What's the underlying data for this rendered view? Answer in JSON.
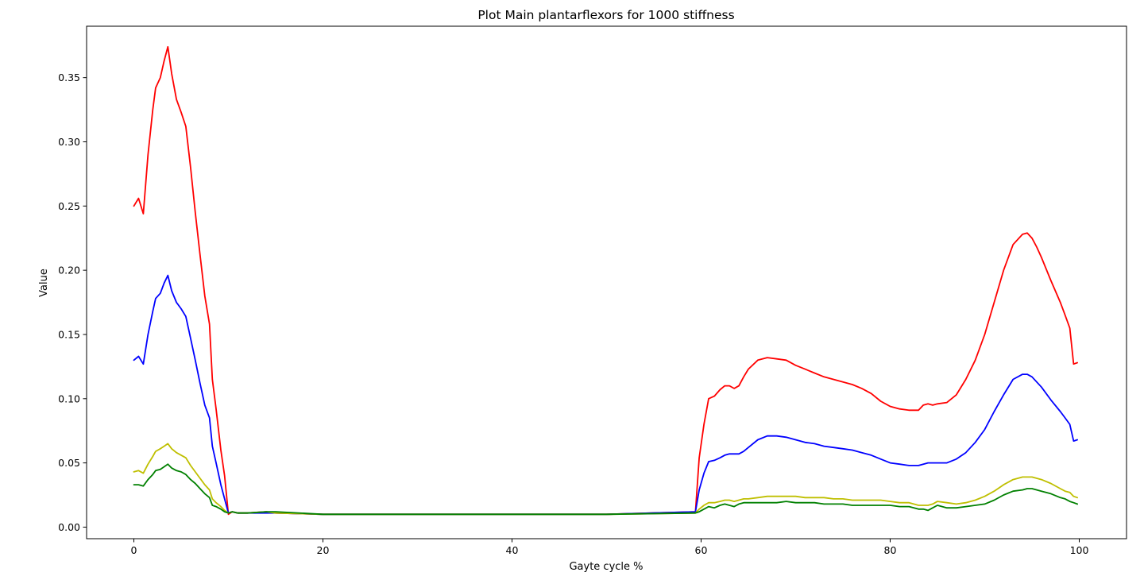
{
  "chart_data": {
    "type": "line",
    "title": "Plot Main plantarflexors for 1000 stiffness",
    "xlabel": "Gayte cycle %",
    "ylabel": "Value",
    "xlim": [
      -5,
      105
    ],
    "ylim": [
      -0.009,
      0.39
    ],
    "xticks": [
      0,
      20,
      40,
      60,
      80,
      100
    ],
    "xtick_labels": [
      "0",
      "20",
      "40",
      "60",
      "80",
      "100"
    ],
    "yticks": [
      0.0,
      0.05,
      0.1,
      0.15,
      0.2,
      0.25,
      0.3,
      0.35
    ],
    "ytick_labels": [
      "0.00",
      "0.05",
      "0.10",
      "0.15",
      "0.20",
      "0.25",
      "0.30",
      "0.35"
    ],
    "grid": false,
    "legend": "none",
    "series": [
      {
        "color": "#ff0000",
        "x": [
          0,
          0.5,
          1,
          1.5,
          2,
          2.3,
          2.8,
          3.2,
          3.6,
          4,
          4.5,
          5,
          5.5,
          6,
          6.5,
          7,
          7.5,
          8,
          8.3,
          8.7,
          9.2,
          9.6,
          10,
          10.4,
          11,
          12,
          14,
          15,
          20,
          30,
          40,
          50,
          59.4,
          59.8,
          60.3,
          60.8,
          61.4,
          62,
          62.5,
          63,
          63.5,
          64,
          64.5,
          65,
          66,
          67,
          68,
          69,
          70,
          71,
          72,
          73,
          74,
          75,
          76,
          77,
          78,
          79,
          80,
          81,
          82,
          83,
          83.5,
          84,
          84.5,
          85,
          86,
          87,
          88,
          89,
          90,
          91,
          92,
          93,
          94,
          94.5,
          95,
          95.5,
          96,
          97,
          98,
          98.5,
          99,
          99.4,
          99.8
        ],
        "y": [
          0.25,
          0.256,
          0.244,
          0.29,
          0.325,
          0.342,
          0.35,
          0.363,
          0.374,
          0.353,
          0.333,
          0.323,
          0.312,
          0.28,
          0.245,
          0.212,
          0.18,
          0.158,
          0.115,
          0.092,
          0.06,
          0.04,
          0.01,
          0.012,
          0.011,
          0.011,
          0.012,
          0.011,
          0.01,
          0.01,
          0.01,
          0.01,
          0.012,
          0.054,
          0.08,
          0.1,
          0.102,
          0.107,
          0.11,
          0.11,
          0.108,
          0.11,
          0.117,
          0.123,
          0.13,
          0.132,
          0.131,
          0.13,
          0.126,
          0.123,
          0.12,
          0.117,
          0.115,
          0.113,
          0.111,
          0.108,
          0.104,
          0.098,
          0.094,
          0.092,
          0.091,
          0.091,
          0.095,
          0.096,
          0.095,
          0.096,
          0.097,
          0.103,
          0.115,
          0.13,
          0.15,
          0.175,
          0.2,
          0.22,
          0.228,
          0.229,
          0.225,
          0.218,
          0.21,
          0.192,
          0.175,
          0.165,
          0.155,
          0.127,
          0.128
        ]
      },
      {
        "color": "#0000ff",
        "x": [
          0,
          0.5,
          1,
          1.5,
          2,
          2.3,
          2.8,
          3.2,
          3.6,
          4,
          4.5,
          5,
          5.5,
          6,
          6.5,
          7,
          7.5,
          8,
          8.3,
          8.7,
          9.2,
          9.6,
          10,
          10.4,
          11,
          12,
          14,
          15,
          20,
          30,
          40,
          50,
          59.4,
          59.8,
          60.3,
          60.8,
          61.4,
          62,
          62.5,
          63,
          63.5,
          64,
          64.5,
          65,
          66,
          67,
          68,
          69,
          70,
          71,
          72,
          73,
          74,
          75,
          76,
          77,
          78,
          79,
          80,
          81,
          82,
          83,
          83.5,
          84,
          84.5,
          85,
          86,
          87,
          88,
          89,
          90,
          91,
          92,
          93,
          94,
          94.5,
          95,
          95.5,
          96,
          97,
          98,
          98.5,
          99,
          99.4,
          99.8
        ],
        "y": [
          0.13,
          0.133,
          0.127,
          0.15,
          0.168,
          0.178,
          0.182,
          0.19,
          0.196,
          0.184,
          0.175,
          0.17,
          0.164,
          0.147,
          0.13,
          0.112,
          0.095,
          0.085,
          0.063,
          0.05,
          0.033,
          0.022,
          0.011,
          0.012,
          0.011,
          0.011,
          0.011,
          0.011,
          0.01,
          0.01,
          0.01,
          0.01,
          0.012,
          0.029,
          0.042,
          0.051,
          0.052,
          0.054,
          0.056,
          0.057,
          0.057,
          0.057,
          0.059,
          0.062,
          0.068,
          0.071,
          0.071,
          0.07,
          0.068,
          0.066,
          0.065,
          0.063,
          0.062,
          0.061,
          0.06,
          0.058,
          0.056,
          0.053,
          0.05,
          0.049,
          0.048,
          0.048,
          0.049,
          0.05,
          0.05,
          0.05,
          0.05,
          0.053,
          0.058,
          0.066,
          0.076,
          0.09,
          0.103,
          0.115,
          0.119,
          0.119,
          0.117,
          0.113,
          0.109,
          0.099,
          0.09,
          0.085,
          0.08,
          0.067,
          0.068
        ]
      },
      {
        "color": "#bfbf00",
        "x": [
          0,
          0.5,
          1,
          1.5,
          2,
          2.3,
          2.8,
          3.2,
          3.6,
          4,
          4.5,
          5,
          5.5,
          6,
          6.5,
          7,
          7.5,
          8,
          8.3,
          8.7,
          9.2,
          9.6,
          10,
          10.4,
          11,
          12,
          14,
          15,
          20,
          30,
          40,
          50,
          59.4,
          59.8,
          60.3,
          60.8,
          61.4,
          62,
          62.5,
          63,
          63.5,
          64,
          64.5,
          65,
          66,
          67,
          68,
          69,
          70,
          71,
          72,
          73,
          74,
          75,
          76,
          77,
          78,
          79,
          80,
          81,
          82,
          83,
          83.5,
          84,
          84.5,
          85,
          86,
          87,
          88,
          89,
          90,
          91,
          92,
          93,
          94,
          94.5,
          95,
          95.5,
          96,
          97,
          98,
          98.5,
          99,
          99.4,
          99.8
        ],
        "y": [
          0.043,
          0.044,
          0.042,
          0.049,
          0.055,
          0.059,
          0.061,
          0.063,
          0.065,
          0.061,
          0.058,
          0.056,
          0.054,
          0.048,
          0.043,
          0.038,
          0.033,
          0.029,
          0.022,
          0.019,
          0.016,
          0.013,
          0.011,
          0.012,
          0.011,
          0.011,
          0.012,
          0.011,
          0.01,
          0.01,
          0.01,
          0.01,
          0.011,
          0.014,
          0.017,
          0.019,
          0.019,
          0.02,
          0.021,
          0.021,
          0.02,
          0.021,
          0.022,
          0.022,
          0.023,
          0.024,
          0.024,
          0.024,
          0.024,
          0.023,
          0.023,
          0.023,
          0.022,
          0.022,
          0.021,
          0.021,
          0.021,
          0.021,
          0.02,
          0.019,
          0.019,
          0.017,
          0.017,
          0.017,
          0.018,
          0.02,
          0.019,
          0.018,
          0.019,
          0.021,
          0.024,
          0.028,
          0.033,
          0.037,
          0.039,
          0.039,
          0.039,
          0.038,
          0.037,
          0.034,
          0.03,
          0.028,
          0.027,
          0.024,
          0.023
        ]
      },
      {
        "color": "#008000",
        "x": [
          0,
          0.5,
          1,
          1.5,
          2,
          2.3,
          2.8,
          3.2,
          3.6,
          4,
          4.5,
          5,
          5.5,
          6,
          6.5,
          7,
          7.5,
          8,
          8.3,
          8.7,
          9.2,
          9.6,
          10,
          10.4,
          11,
          12,
          14,
          15,
          20,
          30,
          40,
          50,
          59.4,
          59.8,
          60.3,
          60.8,
          61.4,
          62,
          62.5,
          63,
          63.5,
          64,
          64.5,
          65,
          66,
          67,
          68,
          69,
          70,
          71,
          72,
          73,
          74,
          75,
          76,
          77,
          78,
          79,
          80,
          81,
          82,
          83,
          83.5,
          84,
          84.5,
          85,
          86,
          87,
          88,
          89,
          90,
          91,
          92,
          93,
          94,
          94.5,
          95,
          95.5,
          96,
          97,
          98,
          98.5,
          99,
          99.4,
          99.8
        ],
        "y": [
          0.033,
          0.033,
          0.032,
          0.037,
          0.041,
          0.044,
          0.045,
          0.047,
          0.049,
          0.046,
          0.044,
          0.043,
          0.041,
          0.037,
          0.034,
          0.03,
          0.026,
          0.023,
          0.017,
          0.016,
          0.014,
          0.012,
          0.011,
          0.012,
          0.011,
          0.011,
          0.012,
          0.012,
          0.01,
          0.01,
          0.01,
          0.01,
          0.011,
          0.012,
          0.014,
          0.016,
          0.015,
          0.017,
          0.018,
          0.017,
          0.016,
          0.018,
          0.019,
          0.019,
          0.019,
          0.019,
          0.019,
          0.02,
          0.019,
          0.019,
          0.019,
          0.018,
          0.018,
          0.018,
          0.017,
          0.017,
          0.017,
          0.017,
          0.017,
          0.016,
          0.016,
          0.014,
          0.014,
          0.013,
          0.015,
          0.017,
          0.015,
          0.015,
          0.016,
          0.017,
          0.018,
          0.021,
          0.025,
          0.028,
          0.029,
          0.03,
          0.03,
          0.029,
          0.028,
          0.026,
          0.023,
          0.022,
          0.02,
          0.019,
          0.018
        ]
      }
    ]
  }
}
